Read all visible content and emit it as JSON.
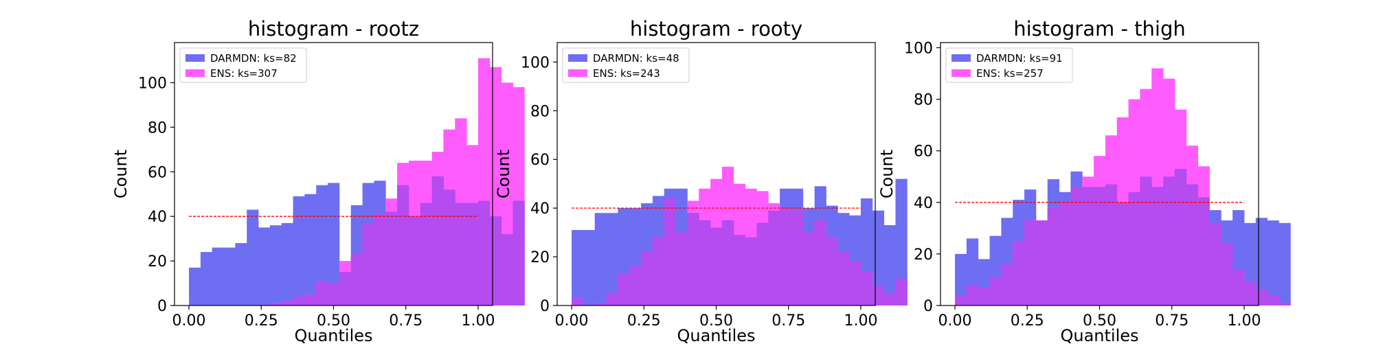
{
  "colors": {
    "darmdn": "#6e6ef2",
    "ens": "#ff5cff",
    "overlap": "#b44cf0",
    "reference_line": "#ff0000",
    "frame": "#000000"
  },
  "chart_data": [
    {
      "type": "bar",
      "title": "histogram - rootz",
      "xlabel": "Quantiles",
      "ylabel": "Count",
      "xlim": [
        -0.05,
        1.05
      ],
      "ylim": [
        0,
        118
      ],
      "xticks": [
        "0.00",
        "0.25",
        "0.50",
        "0.75",
        "1.00"
      ],
      "yticks": [
        "0",
        "20",
        "40",
        "60",
        "80",
        "100"
      ],
      "grid": false,
      "legend_position": "top-left",
      "bin_width": 0.04,
      "bin_start": 0.0,
      "reference_y": 40,
      "series": [
        {
          "name": "DARMDN: ks=82",
          "values": [
            17,
            24,
            26,
            26,
            28,
            43,
            35,
            36,
            37,
            49,
            50,
            54,
            55,
            15,
            45,
            55,
            56,
            42,
            54,
            40,
            46,
            58,
            52,
            46,
            46,
            47,
            40,
            32,
            47
          ]
        },
        {
          "name": "ENS: ks=307",
          "values": [
            0,
            0,
            0,
            0,
            0,
            0,
            0,
            1,
            2,
            4,
            5,
            11,
            10,
            20,
            23,
            37,
            41,
            48,
            64,
            65,
            65,
            69,
            79,
            84,
            72,
            111,
            107,
            100,
            98
          ]
        }
      ]
    },
    {
      "type": "bar",
      "title": "histogram - rooty",
      "xlabel": "Quantiles",
      "ylabel": "Count",
      "xlim": [
        -0.05,
        1.05
      ],
      "ylim": [
        0,
        108
      ],
      "xticks": [
        "0.00",
        "0.25",
        "0.50",
        "0.75",
        "1.00"
      ],
      "yticks": [
        "0",
        "20",
        "40",
        "60",
        "80",
        "100"
      ],
      "grid": false,
      "legend_position": "top-left",
      "bin_width": 0.04,
      "bin_start": 0.0,
      "reference_y": 40,
      "series": [
        {
          "name": "DARMDN: ks=48",
          "values": [
            31,
            31,
            38,
            38,
            40,
            40,
            42,
            45,
            48,
            48,
            38,
            35,
            32,
            35,
            29,
            28,
            34,
            39,
            48,
            48,
            40,
            49,
            41,
            38,
            37,
            44,
            39,
            33,
            52
          ]
        },
        {
          "name": "ENS: ks=243",
          "values": [
            3,
            0,
            1,
            5,
            13,
            16,
            22,
            28,
            44,
            30,
            43,
            48,
            52,
            57,
            50,
            48,
            47,
            42,
            40,
            39,
            30,
            35,
            28,
            22,
            18,
            14,
            8,
            5,
            11
          ]
        }
      ]
    },
    {
      "type": "bar",
      "title": "histogram - thigh",
      "xlabel": "Quantiles",
      "ylabel": "Count",
      "xlim": [
        -0.05,
        1.05
      ],
      "ylim": [
        0,
        102
      ],
      "xticks": [
        "0.00",
        "0.25",
        "0.50",
        "0.75",
        "1.00"
      ],
      "yticks": [
        "0",
        "20",
        "40",
        "60",
        "80",
        "100"
      ],
      "grid": false,
      "legend_position": "top-left",
      "bin_width": 0.04,
      "bin_start": 0.0,
      "reference_y": 40,
      "series": [
        {
          "name": "DARMDN: ks=91",
          "values": [
            20,
            26,
            18,
            27,
            34,
            41,
            45,
            33,
            49,
            44,
            52,
            46,
            46,
            47,
            40,
            44,
            50,
            46,
            50,
            53,
            47,
            42,
            37,
            33,
            37,
            32,
            34,
            33,
            32
          ]
        },
        {
          "name": "ENS: ks=257",
          "values": [
            4,
            8,
            7,
            11,
            16,
            25,
            33,
            33,
            38,
            40,
            46,
            50,
            58,
            66,
            73,
            80,
            84,
            92,
            88,
            76,
            62,
            54,
            32,
            24,
            14,
            9,
            6,
            4,
            1
          ]
        }
      ]
    }
  ]
}
